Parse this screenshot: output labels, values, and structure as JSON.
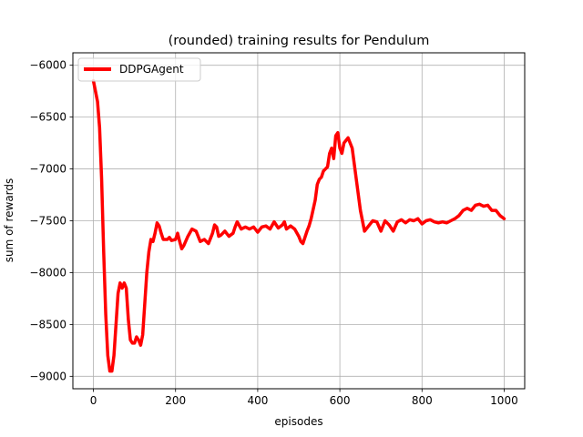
{
  "chart_data": {
    "type": "line",
    "title": "(rounded) training results for Pendulum",
    "xlabel": "episodes",
    "ylabel": "sum of rewards",
    "xlim": [
      -50,
      1050
    ],
    "ylim": [
      -9120,
      -5880
    ],
    "xticks": [
      0,
      200,
      400,
      600,
      800,
      1000
    ],
    "yticks": [
      -9000,
      -8500,
      -8000,
      -7500,
      -7000,
      -6500,
      -6000
    ],
    "grid": true,
    "legend_position": "top-left",
    "series": [
      {
        "name": "DDPGAgent",
        "color": "#ff0000",
        "x": [
          0,
          5,
          10,
          15,
          20,
          25,
          30,
          35,
          40,
          45,
          50,
          55,
          60,
          65,
          70,
          75,
          80,
          85,
          90,
          95,
          100,
          105,
          110,
          115,
          120,
          125,
          130,
          135,
          140,
          145,
          150,
          155,
          160,
          165,
          170,
          175,
          180,
          185,
          190,
          200,
          205,
          210,
          215,
          220,
          230,
          240,
          250,
          260,
          270,
          280,
          290,
          295,
          300,
          305,
          310,
          320,
          330,
          340,
          345,
          350,
          360,
          370,
          380,
          390,
          400,
          410,
          420,
          430,
          440,
          450,
          460,
          465,
          470,
          480,
          490,
          500,
          505,
          510,
          520,
          525,
          530,
          540,
          545,
          550,
          555,
          560,
          565,
          570,
          575,
          580,
          585,
          590,
          595,
          600,
          605,
          610,
          620,
          630,
          640,
          650,
          660,
          670,
          680,
          690,
          700,
          710,
          720,
          730,
          740,
          750,
          760,
          770,
          780,
          790,
          800,
          810,
          820,
          830,
          840,
          850,
          860,
          870,
          880,
          890,
          900,
          910,
          920,
          930,
          940,
          950,
          960,
          970,
          980,
          990,
          1000
        ],
        "y": [
          -6150,
          -6250,
          -6350,
          -6600,
          -7100,
          -7800,
          -8400,
          -8800,
          -8950,
          -8950,
          -8800,
          -8500,
          -8200,
          -8100,
          -8150,
          -8100,
          -8150,
          -8450,
          -8650,
          -8680,
          -8680,
          -8620,
          -8650,
          -8700,
          -8600,
          -8300,
          -8000,
          -7800,
          -7680,
          -7700,
          -7620,
          -7520,
          -7550,
          -7620,
          -7680,
          -7680,
          -7680,
          -7660,
          -7690,
          -7680,
          -7620,
          -7700,
          -7770,
          -7740,
          -7650,
          -7580,
          -7600,
          -7700,
          -7680,
          -7720,
          -7620,
          -7540,
          -7560,
          -7650,
          -7640,
          -7600,
          -7650,
          -7620,
          -7560,
          -7510,
          -7580,
          -7560,
          -7580,
          -7560,
          -7610,
          -7560,
          -7550,
          -7580,
          -7510,
          -7570,
          -7540,
          -7510,
          -7580,
          -7550,
          -7580,
          -7650,
          -7700,
          -7720,
          -7600,
          -7550,
          -7480,
          -7300,
          -7150,
          -7100,
          -7080,
          -7020,
          -7000,
          -6980,
          -6850,
          -6800,
          -6900,
          -6680,
          -6650,
          -6800,
          -6850,
          -6750,
          -6700,
          -6800,
          -7100,
          -7400,
          -7600,
          -7550,
          -7500,
          -7510,
          -7600,
          -7500,
          -7540,
          -7600,
          -7510,
          -7490,
          -7520,
          -7490,
          -7500,
          -7480,
          -7530,
          -7500,
          -7490,
          -7510,
          -7520,
          -7510,
          -7520,
          -7500,
          -7480,
          -7450,
          -7400,
          -7380,
          -7400,
          -7350,
          -7340,
          -7360,
          -7350,
          -7400,
          -7400,
          -7450,
          -7480
        ]
      }
    ]
  }
}
